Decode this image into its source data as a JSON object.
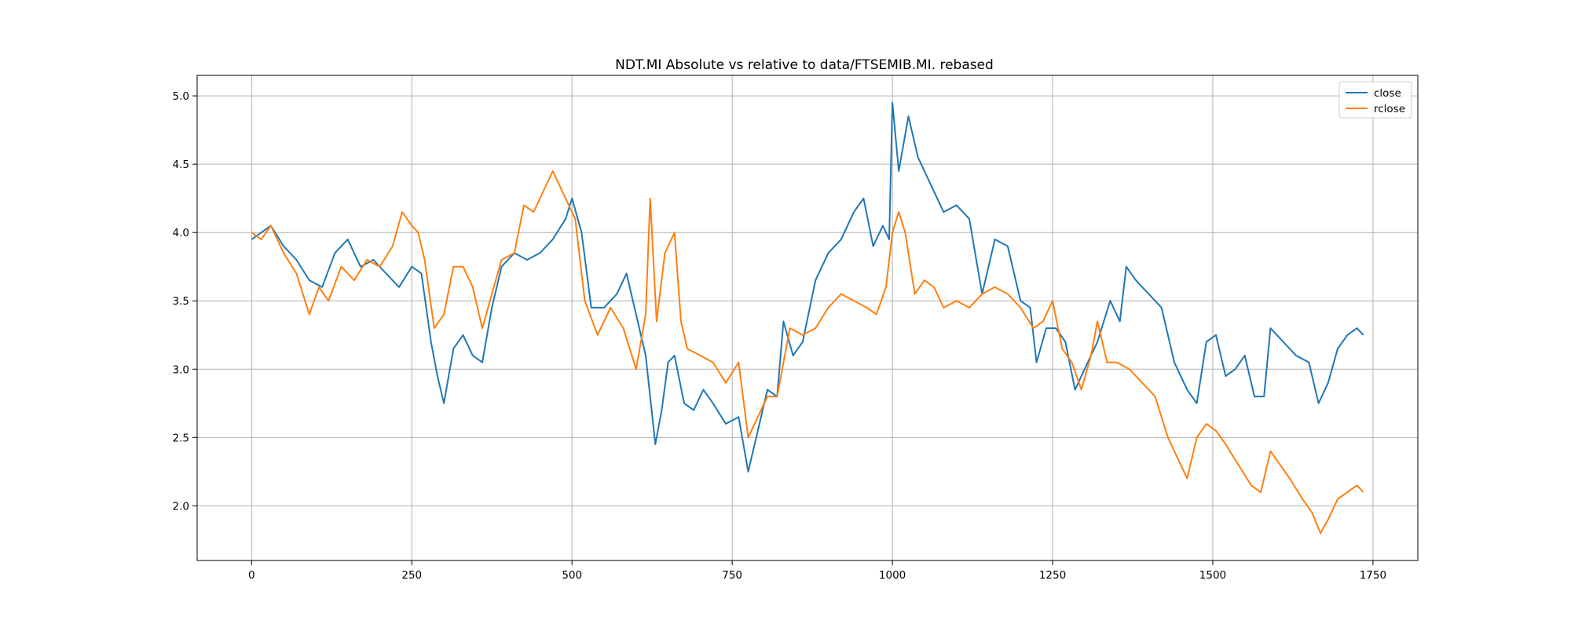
{
  "chart_data": {
    "type": "line",
    "title": "NDT.MI Absolute vs relative to data/FTSEMIB.MI. rebased",
    "xlabel": "",
    "ylabel": "",
    "xlim": [
      -85,
      1820
    ],
    "ylim": [
      1.6,
      5.15
    ],
    "xticks": [
      0,
      250,
      500,
      750,
      1000,
      1250,
      1500,
      1750
    ],
    "xtick_labels": [
      "0",
      "250",
      "500",
      "750",
      "1000",
      "1250",
      "1500",
      "1750"
    ],
    "yticks": [
      2.0,
      2.5,
      3.0,
      3.5,
      4.0,
      4.5,
      5.0
    ],
    "ytick_labels": [
      "2.0",
      "2.5",
      "3.0",
      "3.5",
      "4.0",
      "4.5",
      "5.0"
    ],
    "grid": true,
    "legend_position": "top-right",
    "series": [
      {
        "name": "close",
        "color": "#1f77b4",
        "x": [
          0,
          15,
          30,
          50,
          70,
          90,
          110,
          130,
          150,
          170,
          190,
          210,
          230,
          250,
          265,
          280,
          290,
          300,
          315,
          330,
          345,
          360,
          375,
          390,
          410,
          430,
          450,
          470,
          490,
          500,
          515,
          530,
          550,
          570,
          585,
          600,
          615,
          630,
          640,
          650,
          660,
          675,
          690,
          705,
          720,
          740,
          760,
          775,
          790,
          805,
          820,
          830,
          845,
          860,
          880,
          900,
          920,
          940,
          955,
          970,
          985,
          995,
          1000,
          1010,
          1025,
          1040,
          1060,
          1080,
          1100,
          1120,
          1140,
          1160,
          1180,
          1200,
          1215,
          1225,
          1240,
          1255,
          1270,
          1285,
          1300,
          1320,
          1340,
          1355,
          1365,
          1380,
          1400,
          1420,
          1440,
          1460,
          1475,
          1490,
          1505,
          1520,
          1535,
          1550,
          1565,
          1580,
          1590,
          1610,
          1630,
          1650,
          1665,
          1680,
          1695,
          1710,
          1725,
          1735
        ],
        "y": [
          3.95,
          4.0,
          4.05,
          3.9,
          3.8,
          3.65,
          3.6,
          3.85,
          3.95,
          3.75,
          3.8,
          3.7,
          3.6,
          3.75,
          3.7,
          3.2,
          2.95,
          2.75,
          3.15,
          3.25,
          3.1,
          3.05,
          3.45,
          3.75,
          3.85,
          3.8,
          3.85,
          3.95,
          4.1,
          4.25,
          4.0,
          3.45,
          3.45,
          3.55,
          3.7,
          3.4,
          3.1,
          2.45,
          2.7,
          3.05,
          3.1,
          2.75,
          2.7,
          2.85,
          2.75,
          2.6,
          2.65,
          2.25,
          2.55,
          2.85,
          2.8,
          3.35,
          3.1,
          3.2,
          3.65,
          3.85,
          3.95,
          4.15,
          4.25,
          3.9,
          4.05,
          3.95,
          4.95,
          4.45,
          4.85,
          4.55,
          4.35,
          4.15,
          4.2,
          4.1,
          3.55,
          3.95,
          3.9,
          3.5,
          3.45,
          3.05,
          3.3,
          3.3,
          3.2,
          2.85,
          3.0,
          3.2,
          3.5,
          3.35,
          3.75,
          3.65,
          3.55,
          3.45,
          3.05,
          2.85,
          2.75,
          3.2,
          3.25,
          2.95,
          3.0,
          3.1,
          2.8,
          2.8,
          3.3,
          3.2,
          3.1,
          3.05,
          2.75,
          2.9,
          3.15,
          3.25,
          3.3,
          3.25
        ]
      },
      {
        "name": "rclose",
        "color": "#ff7f0e",
        "x": [
          0,
          15,
          30,
          50,
          70,
          90,
          105,
          120,
          140,
          160,
          180,
          200,
          220,
          235,
          250,
          260,
          270,
          285,
          300,
          315,
          330,
          345,
          360,
          375,
          390,
          410,
          425,
          440,
          455,
          470,
          480,
          495,
          505,
          520,
          540,
          560,
          580,
          600,
          615,
          622,
          632,
          645,
          660,
          670,
          680,
          700,
          720,
          740,
          760,
          775,
          790,
          805,
          820,
          840,
          860,
          880,
          900,
          920,
          940,
          960,
          975,
          990,
          1000,
          1010,
          1020,
          1035,
          1050,
          1065,
          1080,
          1100,
          1120,
          1140,
          1160,
          1180,
          1200,
          1220,
          1235,
          1250,
          1265,
          1280,
          1295,
          1310,
          1320,
          1335,
          1350,
          1370,
          1390,
          1410,
          1430,
          1445,
          1460,
          1475,
          1490,
          1505,
          1520,
          1540,
          1560,
          1575,
          1590,
          1605,
          1620,
          1640,
          1655,
          1668,
          1680,
          1695,
          1710,
          1725,
          1735
        ],
        "y": [
          4.0,
          3.95,
          4.05,
          3.85,
          3.7,
          3.4,
          3.6,
          3.5,
          3.75,
          3.65,
          3.8,
          3.75,
          3.9,
          4.15,
          4.05,
          4.0,
          3.8,
          3.3,
          3.4,
          3.75,
          3.75,
          3.6,
          3.3,
          3.55,
          3.8,
          3.85,
          4.2,
          4.15,
          4.3,
          4.45,
          4.35,
          4.2,
          4.1,
          3.5,
          3.25,
          3.45,
          3.3,
          3.0,
          3.4,
          4.25,
          3.35,
          3.85,
          4.0,
          3.35,
          3.15,
          3.1,
          3.05,
          2.9,
          3.05,
          2.5,
          2.65,
          2.8,
          2.8,
          3.3,
          3.25,
          3.3,
          3.45,
          3.55,
          3.5,
          3.45,
          3.4,
          3.6,
          4.0,
          4.15,
          4.0,
          3.55,
          3.65,
          3.6,
          3.45,
          3.5,
          3.45,
          3.55,
          3.6,
          3.55,
          3.45,
          3.3,
          3.35,
          3.5,
          3.15,
          3.05,
          2.85,
          3.1,
          3.35,
          3.05,
          3.05,
          3.0,
          2.9,
          2.8,
          2.5,
          2.35,
          2.2,
          2.5,
          2.6,
          2.55,
          2.45,
          2.3,
          2.15,
          2.1,
          2.4,
          2.3,
          2.2,
          2.05,
          1.95,
          1.8,
          1.9,
          2.05,
          2.1,
          2.15,
          2.1
        ]
      }
    ]
  }
}
